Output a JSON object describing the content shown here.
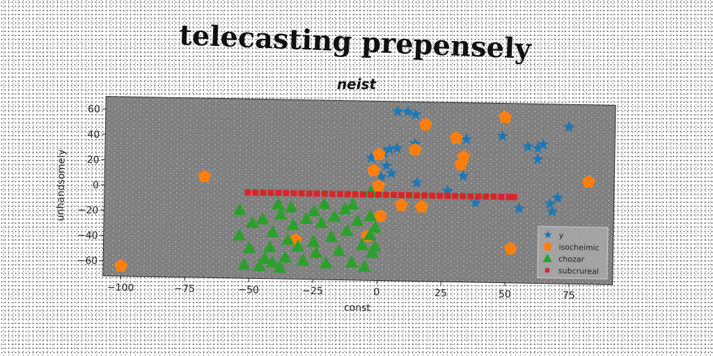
{
  "chart_data": {
    "type": "scatter",
    "title": "telecasting prepensely",
    "subtitle": "neist",
    "xlabel": "const",
    "ylabel": "unhandsomely",
    "xlim": [
      -107,
      92
    ],
    "ylim": [
      -72,
      70
    ],
    "xticks": [
      -100,
      -75,
      -50,
      -25,
      0,
      25,
      50,
      75
    ],
    "yticks": [
      -60,
      -40,
      -20,
      0,
      20,
      40,
      60
    ],
    "legend_position": "lower right",
    "grid": false,
    "background": "#808080",
    "series": [
      {
        "name": "y",
        "marker": "star",
        "color": "#1f77b4",
        "points": [
          [
            7,
            62
          ],
          [
            11,
            62
          ],
          [
            14,
            60
          ],
          [
            4,
            32
          ],
          [
            7,
            33
          ],
          [
            2,
            29
          ],
          [
            14,
            37
          ],
          [
            34,
            41
          ],
          [
            -3,
            25
          ],
          [
            3,
            19
          ],
          [
            5,
            13
          ],
          [
            1,
            10
          ],
          [
            15,
            6
          ],
          [
            33,
            12
          ],
          [
            27,
            0
          ],
          [
            38,
            -9
          ],
          [
            48,
            44
          ],
          [
            58,
            36
          ],
          [
            62,
            35
          ],
          [
            64,
            38
          ],
          [
            62,
            26
          ],
          [
            74,
            52
          ],
          [
            70,
            -4
          ],
          [
            67,
            -9
          ],
          [
            68,
            -15
          ],
          [
            55,
            -13
          ]
        ]
      },
      {
        "name": "isocheimic",
        "marker": "pentagon",
        "color": "#ff7f0e",
        "points": [
          [
            -100,
            -64
          ],
          [
            -68,
            8
          ],
          [
            -32,
            -41
          ],
          [
            -4,
            -37
          ],
          [
            0,
            28
          ],
          [
            -2,
            15
          ],
          [
            0,
            3
          ],
          [
            1,
            -21
          ],
          [
            9,
            -12
          ],
          [
            17,
            -13
          ],
          [
            14,
            32
          ],
          [
            18,
            52
          ],
          [
            30,
            42
          ],
          [
            33,
            27
          ],
          [
            32,
            21
          ],
          [
            49,
            59
          ],
          [
            52,
            -45
          ],
          [
            82,
            9
          ]
        ]
      },
      {
        "name": "chozar",
        "marker": "triangle",
        "color": "#2ca02c",
        "points": [
          [
            -54,
            -18
          ],
          [
            -54,
            -38
          ],
          [
            -52,
            -61
          ],
          [
            -50,
            -48
          ],
          [
            -49,
            -28
          ],
          [
            -45,
            -25
          ],
          [
            -44,
            -56
          ],
          [
            -42,
            -47
          ],
          [
            -41,
            -59
          ],
          [
            -41,
            -35
          ],
          [
            -39,
            -13
          ],
          [
            -38,
            -21
          ],
          [
            -36,
            -55
          ],
          [
            -35,
            -41
          ],
          [
            -33,
            -29
          ],
          [
            -31,
            -46
          ],
          [
            -29,
            -57
          ],
          [
            -28,
            -24
          ],
          [
            -25,
            -18
          ],
          [
            -25,
            -42
          ],
          [
            -24,
            -51
          ],
          [
            -22,
            -27
          ],
          [
            -21,
            -12
          ],
          [
            -20,
            -59
          ],
          [
            -18,
            -38
          ],
          [
            -17,
            -22
          ],
          [
            -15,
            -49
          ],
          [
            -13,
            -16
          ],
          [
            -12,
            -33
          ],
          [
            -10,
            -58
          ],
          [
            -8,
            -25
          ],
          [
            -6,
            -44
          ],
          [
            -5,
            -61
          ],
          [
            -3,
            -21
          ],
          [
            -3,
            -36
          ],
          [
            -2,
            -50
          ],
          [
            -1,
            -30
          ],
          [
            -1,
            -45
          ],
          [
            -38,
            -63
          ],
          [
            -46,
            -62
          ],
          [
            -34,
            -15
          ],
          [
            -10,
            -12
          ],
          [
            -3,
            -2
          ]
        ]
      },
      {
        "name": "subcrureal",
        "marker": "square",
        "color": "#d62728",
        "points": [
          [
            -51,
            -4
          ],
          [
            -48,
            -4
          ],
          [
            -45,
            -4
          ],
          [
            -42,
            -4
          ],
          [
            -39,
            -4
          ],
          [
            -36,
            -4
          ],
          [
            -33,
            -4
          ],
          [
            -30,
            -4
          ],
          [
            -27,
            -4
          ],
          [
            -24,
            -4
          ],
          [
            -21,
            -4
          ],
          [
            -18,
            -4
          ],
          [
            -15,
            -4
          ],
          [
            -12,
            -4
          ],
          [
            -9,
            -4
          ],
          [
            -6,
            -4
          ],
          [
            -3,
            -4
          ],
          [
            0,
            -4
          ],
          [
            3,
            -4
          ],
          [
            6,
            -4
          ],
          [
            9,
            -4
          ],
          [
            12,
            -4
          ],
          [
            15,
            -4
          ],
          [
            18,
            -4
          ],
          [
            21,
            -4
          ],
          [
            24,
            -4
          ],
          [
            27,
            -4
          ],
          [
            30,
            -4
          ],
          [
            33,
            -4
          ],
          [
            36,
            -4
          ],
          [
            39,
            -4
          ],
          [
            42,
            -4
          ],
          [
            45,
            -4
          ],
          [
            48,
            -4
          ],
          [
            51,
            -4
          ],
          [
            53,
            -4
          ]
        ]
      }
    ]
  }
}
